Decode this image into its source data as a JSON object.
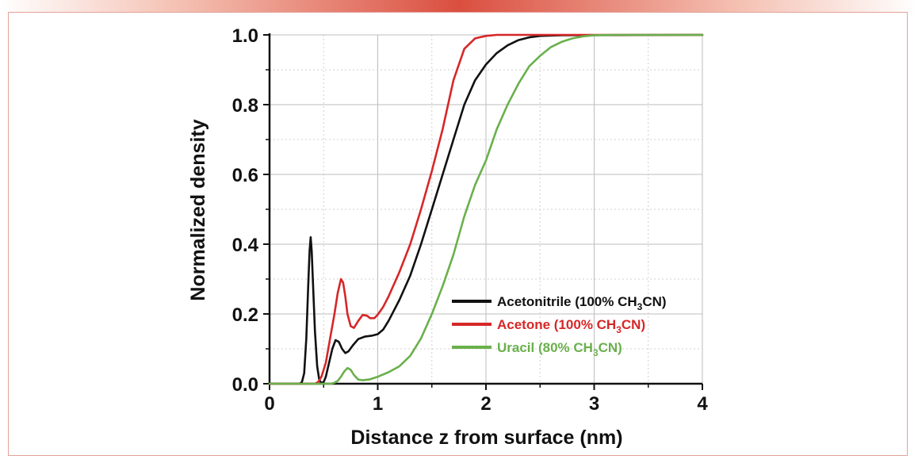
{
  "chart_data": {
    "type": "line",
    "xlabel": "Distance z from surface (nm)",
    "ylabel": "Normalized density",
    "xlim": [
      0,
      4
    ],
    "ylim": [
      0,
      1.0
    ],
    "x_ticks": [
      "0",
      "1",
      "2",
      "3",
      "4"
    ],
    "y_ticks": [
      "0.0",
      "0.2",
      "0.4",
      "0.6",
      "0.8",
      "1.0"
    ],
    "grid": true,
    "legend_position": "bottom-right",
    "series": [
      {
        "name": "Acetonitrile (100% CH3CN)",
        "legend": {
          "main": "Acetonitrile (100% CH",
          "sub": "3",
          "tail": "CN)"
        },
        "color": "#111111",
        "points": [
          [
            0,
            0
          ],
          [
            0.28,
            0
          ],
          [
            0.3,
            0.005
          ],
          [
            0.32,
            0.03
          ],
          [
            0.34,
            0.13
          ],
          [
            0.36,
            0.3
          ],
          [
            0.37,
            0.38
          ],
          [
            0.38,
            0.42
          ],
          [
            0.39,
            0.38
          ],
          [
            0.4,
            0.3
          ],
          [
            0.42,
            0.15
          ],
          [
            0.44,
            0.05
          ],
          [
            0.46,
            0.01
          ],
          [
            0.48,
            0.002
          ],
          [
            0.5,
            0.005
          ],
          [
            0.52,
            0.02
          ],
          [
            0.55,
            0.06
          ],
          [
            0.58,
            0.1
          ],
          [
            0.61,
            0.125
          ],
          [
            0.64,
            0.12
          ],
          [
            0.67,
            0.1
          ],
          [
            0.7,
            0.088
          ],
          [
            0.73,
            0.093
          ],
          [
            0.77,
            0.11
          ],
          [
            0.82,
            0.128
          ],
          [
            0.88,
            0.135
          ],
          [
            0.95,
            0.138
          ],
          [
            1.0,
            0.142
          ],
          [
            1.05,
            0.155
          ],
          [
            1.1,
            0.18
          ],
          [
            1.2,
            0.24
          ],
          [
            1.3,
            0.31
          ],
          [
            1.4,
            0.4
          ],
          [
            1.5,
            0.5
          ],
          [
            1.6,
            0.6
          ],
          [
            1.7,
            0.7
          ],
          [
            1.8,
            0.8
          ],
          [
            1.9,
            0.87
          ],
          [
            2.0,
            0.915
          ],
          [
            2.1,
            0.948
          ],
          [
            2.2,
            0.97
          ],
          [
            2.3,
            0.985
          ],
          [
            2.4,
            0.993
          ],
          [
            2.5,
            0.997
          ],
          [
            2.7,
            0.999
          ],
          [
            4.0,
            1.0
          ]
        ]
      },
      {
        "name": "Acetone (100% CH3CN)",
        "legend": {
          "main": "Acetone (100% CH",
          "sub": "3",
          "tail": "CN)"
        },
        "color": "#d62728",
        "points": [
          [
            0,
            0
          ],
          [
            0.42,
            0
          ],
          [
            0.45,
            0.005
          ],
          [
            0.48,
            0.02
          ],
          [
            0.52,
            0.06
          ],
          [
            0.56,
            0.13
          ],
          [
            0.6,
            0.2
          ],
          [
            0.63,
            0.26
          ],
          [
            0.66,
            0.3
          ],
          [
            0.68,
            0.29
          ],
          [
            0.7,
            0.25
          ],
          [
            0.72,
            0.2
          ],
          [
            0.75,
            0.165
          ],
          [
            0.78,
            0.16
          ],
          [
            0.82,
            0.18
          ],
          [
            0.86,
            0.197
          ],
          [
            0.9,
            0.195
          ],
          [
            0.93,
            0.188
          ],
          [
            0.97,
            0.188
          ],
          [
            1.0,
            0.198
          ],
          [
            1.05,
            0.22
          ],
          [
            1.1,
            0.25
          ],
          [
            1.2,
            0.32
          ],
          [
            1.3,
            0.4
          ],
          [
            1.4,
            0.5
          ],
          [
            1.5,
            0.61
          ],
          [
            1.6,
            0.73
          ],
          [
            1.7,
            0.87
          ],
          [
            1.8,
            0.96
          ],
          [
            1.9,
            0.99
          ],
          [
            2.0,
            0.997
          ],
          [
            2.1,
            1.0
          ],
          [
            4.0,
            1.0
          ]
        ]
      },
      {
        "name": "Uracil (80% CH3CN)",
        "legend": {
          "main": "Uracil (80% CH",
          "sub": "3",
          "tail": "CN)"
        },
        "color": "#6ab04c",
        "points": [
          [
            0,
            0
          ],
          [
            0.57,
            0
          ],
          [
            0.6,
            0.003
          ],
          [
            0.63,
            0.008
          ],
          [
            0.66,
            0.02
          ],
          [
            0.69,
            0.035
          ],
          [
            0.72,
            0.045
          ],
          [
            0.75,
            0.04
          ],
          [
            0.78,
            0.025
          ],
          [
            0.82,
            0.012
          ],
          [
            0.86,
            0.01
          ],
          [
            0.92,
            0.012
          ],
          [
            1.0,
            0.02
          ],
          [
            1.1,
            0.033
          ],
          [
            1.2,
            0.05
          ],
          [
            1.3,
            0.08
          ],
          [
            1.4,
            0.13
          ],
          [
            1.5,
            0.2
          ],
          [
            1.6,
            0.28
          ],
          [
            1.7,
            0.37
          ],
          [
            1.8,
            0.48
          ],
          [
            1.9,
            0.57
          ],
          [
            2.0,
            0.64
          ],
          [
            2.1,
            0.73
          ],
          [
            2.2,
            0.8
          ],
          [
            2.3,
            0.86
          ],
          [
            2.4,
            0.91
          ],
          [
            2.5,
            0.94
          ],
          [
            2.6,
            0.965
          ],
          [
            2.7,
            0.98
          ],
          [
            2.8,
            0.99
          ],
          [
            2.9,
            0.996
          ],
          [
            3.0,
            0.999
          ],
          [
            3.2,
            1.0
          ],
          [
            4.0,
            1.0
          ]
        ]
      }
    ]
  }
}
